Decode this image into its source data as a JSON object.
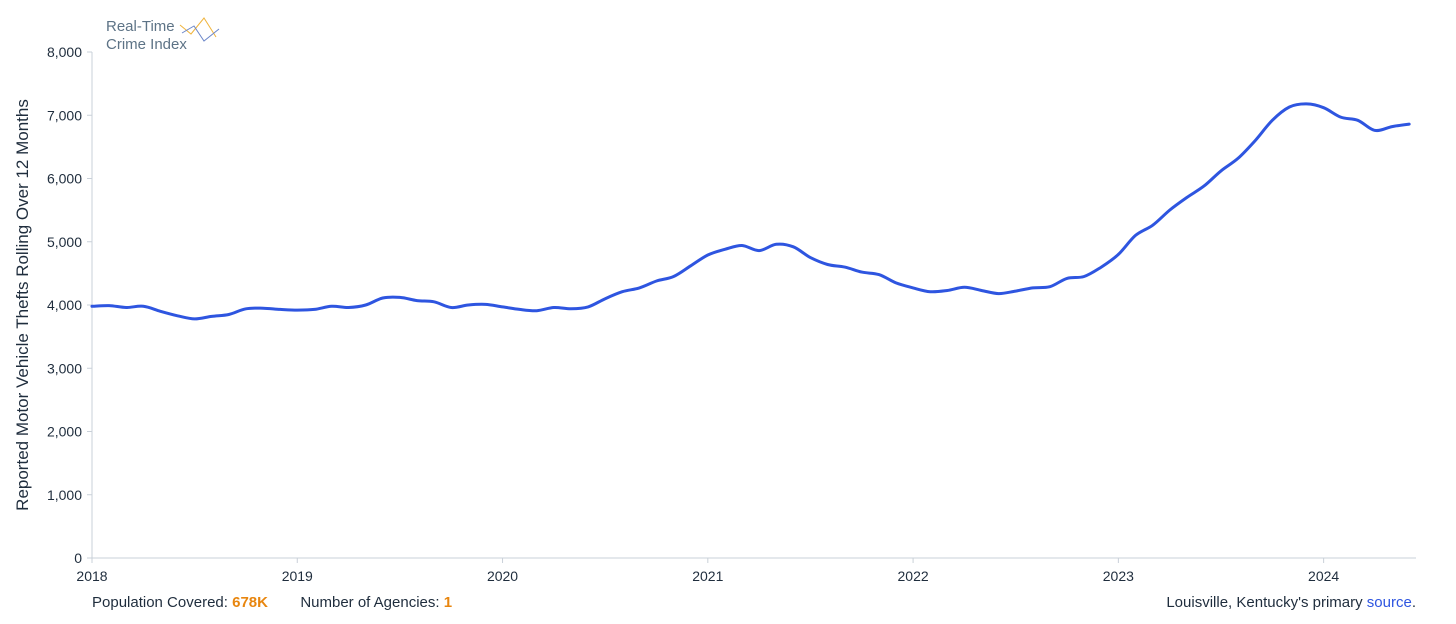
{
  "logo": {
    "line1": "Real-Time",
    "line2": "Crime Index"
  },
  "footer": {
    "population_label": "Population Covered:",
    "population_value": "678K",
    "agencies_label": "Number of Agencies:",
    "agencies_value": "1",
    "source_prefix": "Louisville, Kentucky's primary",
    "source_link": "source",
    "source_suffix": "."
  },
  "colors": {
    "line": "#2e55e0",
    "accent": "#e8860f",
    "link": "#2e55e0",
    "axis": "#c9d0d8"
  },
  "chart_data": {
    "type": "line",
    "title": "",
    "xlabel": "",
    "ylabel": "Reported Motor Vehicle Thefts Rolling Over 12 Months",
    "ylim": [
      0,
      8000
    ],
    "xlim": [
      "2018-01",
      "2024-06"
    ],
    "x_ticks": [
      "2018",
      "2019",
      "2020",
      "2021",
      "2022",
      "2023",
      "2024"
    ],
    "y_ticks": [
      "0",
      "1,000",
      "2,000",
      "3,000",
      "4,000",
      "5,000",
      "6,000",
      "7,000",
      "8,000"
    ],
    "grid": false,
    "series": [
      {
        "x": [
          "2018-01",
          "2018-02",
          "2018-03",
          "2018-04",
          "2018-05",
          "2018-06",
          "2018-07",
          "2018-08",
          "2018-09",
          "2018-10",
          "2018-11",
          "2018-12",
          "2019-01",
          "2019-02",
          "2019-03",
          "2019-04",
          "2019-05",
          "2019-06",
          "2019-07",
          "2019-08",
          "2019-09",
          "2019-10",
          "2019-11",
          "2019-12",
          "2020-01",
          "2020-02",
          "2020-03",
          "2020-04",
          "2020-05",
          "2020-06",
          "2020-07",
          "2020-08",
          "2020-09",
          "2020-10",
          "2020-11",
          "2020-12",
          "2021-01",
          "2021-02",
          "2021-03",
          "2021-04",
          "2021-05",
          "2021-06",
          "2021-07",
          "2021-08",
          "2021-09",
          "2021-10",
          "2021-11",
          "2021-12",
          "2022-01",
          "2022-02",
          "2022-03",
          "2022-04",
          "2022-05",
          "2022-06",
          "2022-07",
          "2022-08",
          "2022-09",
          "2022-10",
          "2022-11",
          "2022-12",
          "2023-01",
          "2023-02",
          "2023-03",
          "2023-04",
          "2023-05",
          "2023-06",
          "2023-07",
          "2023-08",
          "2023-09",
          "2023-10",
          "2023-11",
          "2023-12",
          "2024-01",
          "2024-02",
          "2024-03",
          "2024-04",
          "2024-05",
          "2024-06"
        ],
        "values": [
          3980,
          3990,
          3960,
          3980,
          3900,
          3830,
          3780,
          3820,
          3850,
          3940,
          3950,
          3930,
          3920,
          3930,
          3980,
          3960,
          4000,
          4110,
          4120,
          4070,
          4050,
          3960,
          4000,
          4010,
          3970,
          3930,
          3910,
          3960,
          3940,
          3970,
          4100,
          4210,
          4270,
          4380,
          4450,
          4620,
          4790,
          4880,
          4940,
          4860,
          4960,
          4920,
          4750,
          4640,
          4600,
          4520,
          4480,
          4350,
          4270,
          4210,
          4230,
          4280,
          4230,
          4180,
          4220,
          4270,
          4290,
          4420,
          4450,
          4600,
          4800,
          5100,
          5260,
          5500,
          5700,
          5880,
          6120,
          6320,
          6600,
          6920,
          7130,
          7180,
          7120,
          6970,
          6920,
          6760,
          6820,
          6860
        ]
      }
    ]
  }
}
